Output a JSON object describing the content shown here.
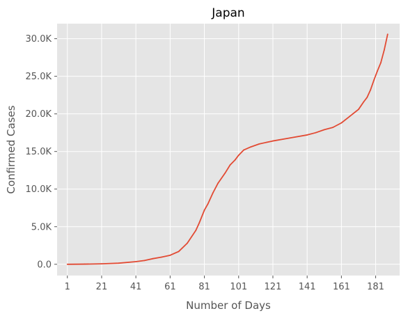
{
  "chart_data": {
    "type": "line",
    "title": "Japan",
    "xlabel": "Number of Days",
    "ylabel": "Confirmed Cases",
    "xlim": [
      -5,
      195
    ],
    "ylim": [
      -1500,
      32000
    ],
    "grid": true,
    "legend": "none",
    "x_ticks": [
      1,
      21,
      41,
      61,
      81,
      101,
      121,
      141,
      161,
      181
    ],
    "y_ticks": [
      0,
      5000,
      10000,
      15000,
      20000,
      25000,
      30000
    ],
    "y_tick_labels": [
      "0.0",
      "5.0K",
      "10.0K",
      "15.0K",
      "20.0K",
      "25.0K",
      "30.0K"
    ],
    "colors": {
      "line": "#E24A33",
      "plot_bg": "#E5E5E5",
      "grid": "#FFFFFF"
    },
    "series": [
      {
        "x": [
          1,
          11,
          21,
          31,
          41,
          46,
          51,
          56,
          61,
          66,
          71,
          76,
          78,
          81,
          83,
          86,
          89,
          93,
          96,
          99,
          101,
          104,
          108,
          113,
          121,
          131,
          141,
          146,
          151,
          156,
          161,
          166,
          171,
          174,
          176,
          178,
          180,
          182,
          184,
          186,
          188
        ],
        "values": [
          0,
          20,
          60,
          150,
          350,
          500,
          750,
          950,
          1200,
          1700,
          2800,
          4500,
          5500,
          7200,
          8000,
          9500,
          10800,
          12100,
          13200,
          13900,
          14500,
          15200,
          15600,
          16000,
          16400,
          16800,
          17200,
          17500,
          17900,
          18200,
          18800,
          19700,
          20600,
          21600,
          22200,
          23200,
          24500,
          25700,
          26800,
          28500,
          30600
        ]
      }
    ]
  }
}
